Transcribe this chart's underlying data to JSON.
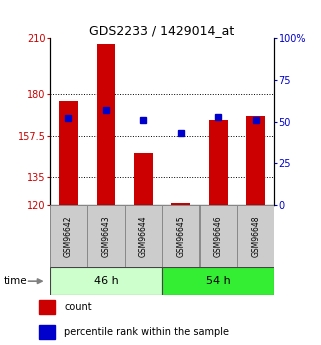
{
  "title": "GDS2233 / 1429014_at",
  "samples": [
    "GSM96642",
    "GSM96643",
    "GSM96644",
    "GSM96645",
    "GSM96646",
    "GSM96648"
  ],
  "count_values": [
    176,
    207,
    148,
    121,
    166,
    168
  ],
  "percentile_values": [
    52,
    57,
    51,
    43,
    53,
    51
  ],
  "groups": [
    {
      "label": "46 h",
      "indices": [
        0,
        1,
        2
      ],
      "color": "#ccffcc"
    },
    {
      "label": "54 h",
      "indices": [
        3,
        4,
        5
      ],
      "color": "#33ee33"
    }
  ],
  "ylim_left": [
    120,
    210
  ],
  "ylim_right": [
    0,
    100
  ],
  "yticks_left": [
    120,
    135,
    157.5,
    180,
    210
  ],
  "yticks_right": [
    0,
    25,
    50,
    75,
    100
  ],
  "ytick_labels_left": [
    "120",
    "135",
    "157.5",
    "180",
    "210"
  ],
  "ytick_labels_right": [
    "0",
    "25",
    "50",
    "75",
    "100%"
  ],
  "hlines": [
    135,
    157.5,
    180
  ],
  "bar_color": "#cc0000",
  "percentile_color": "#0000cc",
  "bar_width": 0.5,
  "background_color": "#ffffff",
  "plot_bg_color": "#ffffff",
  "legend_items": [
    {
      "label": "count",
      "color": "#cc0000"
    },
    {
      "label": "percentile rank within the sample",
      "color": "#0000cc"
    }
  ],
  "time_label": "time",
  "left_axis_color": "#cc0000",
  "right_axis_color": "#0000cc",
  "title_fontsize": 9,
  "tick_fontsize": 7,
  "sample_fontsize": 5.5,
  "group_fontsize": 8,
  "legend_fontsize": 7
}
